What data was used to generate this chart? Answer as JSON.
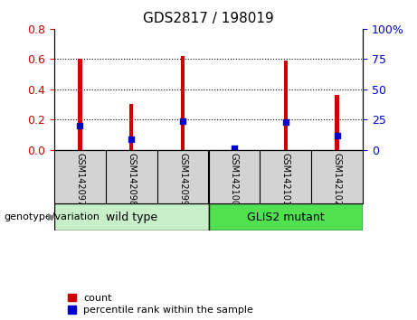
{
  "title": "GDS2817 / 198019",
  "samples": [
    "GSM142097",
    "GSM142098",
    "GSM142099",
    "GSM142100",
    "GSM142101",
    "GSM142102"
  ],
  "count_values": [
    0.6,
    0.3,
    0.62,
    0.03,
    0.59,
    0.36
  ],
  "percentile_values": [
    20,
    8.5,
    23.5,
    1.5,
    23,
    12
  ],
  "groups": [
    {
      "label": "wild type",
      "start": 0,
      "end": 3,
      "color": "#c8f0c8"
    },
    {
      "label": "GLIS2 mutant",
      "start": 3,
      "end": 6,
      "color": "#50e050"
    }
  ],
  "group_label": "genotype/variation",
  "ylim_left": [
    0,
    0.8
  ],
  "ylim_right": [
    0,
    100
  ],
  "yticks_left": [
    0,
    0.2,
    0.4,
    0.6,
    0.8
  ],
  "yticks_right": [
    0,
    25,
    50,
    75,
    100
  ],
  "bar_color": "#cc0000",
  "dot_color": "#0000cc",
  "dot_size": 18,
  "tick_label_color_left": "#cc0000",
  "tick_label_color_right": "#0000cc",
  "legend_count_label": "count",
  "legend_percentile_label": "percentile rank within the sample",
  "title_fontsize": 11,
  "tick_fontsize": 9,
  "legend_fontsize": 8,
  "sample_bg_color": "#d3d3d3",
  "divider_color": "#888888"
}
